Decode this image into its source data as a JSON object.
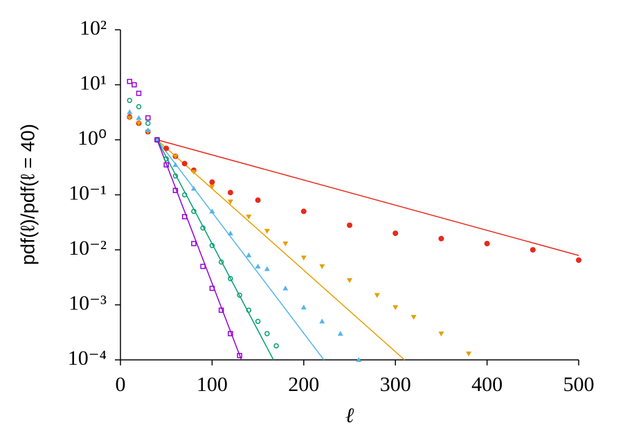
{
  "chart_data": {
    "type": "scatter",
    "xlabel": "ℓ",
    "ylabel": "pdf(ℓ)/pdf(ℓ = 40)",
    "xlim": [
      0,
      500
    ],
    "xticks": [
      0,
      100,
      200,
      300,
      400,
      500
    ],
    "ylim": [
      0.0001,
      100
    ],
    "log_y": true,
    "yticks": [
      {
        "value": 0.0001,
        "label": "10⁻⁴"
      },
      {
        "value": 0.001,
        "label": "10⁻³"
      },
      {
        "value": 0.01,
        "label": "10⁻²"
      },
      {
        "value": 0.1,
        "label": "10⁻¹"
      },
      {
        "value": 1,
        "label": "10⁰"
      },
      {
        "value": 10,
        "label": "10¹"
      },
      {
        "value": 100,
        "label": "10²"
      }
    ],
    "grid": false,
    "series": [
      {
        "color": "#e8291c",
        "marker": "circle",
        "x": [
          10,
          20,
          30,
          40,
          50,
          60,
          70,
          80,
          100,
          120,
          150,
          200,
          250,
          300,
          350,
          400,
          450,
          500
        ],
        "values": [
          2.6,
          2.0,
          1.4,
          1.0,
          0.7,
          0.5,
          0.37,
          0.28,
          0.17,
          0.11,
          0.08,
          0.05,
          0.028,
          0.02,
          0.016,
          0.013,
          0.01,
          0.0065
        ]
      },
      {
        "color": "#e69f00",
        "marker": "triangle-down",
        "x": [
          10,
          20,
          30,
          40,
          60,
          80,
          100,
          120,
          140,
          160,
          180,
          200,
          220,
          250,
          280,
          300,
          320,
          350,
          380
        ],
        "values": [
          2.5,
          2.0,
          1.4,
          1.0,
          0.5,
          0.26,
          0.14,
          0.075,
          0.04,
          0.022,
          0.013,
          0.0072,
          0.005,
          0.0028,
          0.0015,
          0.0009,
          0.0006,
          0.0003,
          0.00013
        ]
      },
      {
        "color": "#56b4e9",
        "marker": "triangle-up",
        "x": [
          10,
          20,
          30,
          40,
          60,
          80,
          100,
          120,
          140,
          150,
          160,
          180,
          200,
          220,
          240,
          260
        ],
        "values": [
          3.2,
          2.5,
          1.5,
          1.0,
          0.35,
          0.13,
          0.05,
          0.02,
          0.008,
          0.005,
          0.0045,
          0.002,
          0.0009,
          0.0005,
          0.0003,
          0.0001
        ]
      },
      {
        "color": "#009e73",
        "marker": "circle-open",
        "x": [
          10,
          20,
          30,
          40,
          50,
          60,
          70,
          80,
          90,
          100,
          110,
          120,
          130,
          140,
          150,
          160,
          170
        ],
        "values": [
          5.2,
          4.0,
          2.0,
          1.0,
          0.45,
          0.22,
          0.1,
          0.05,
          0.025,
          0.012,
          0.006,
          0.003,
          0.0015,
          0.0008,
          0.0005,
          0.0003,
          0.00018
        ]
      },
      {
        "color": "#9400d3",
        "marker": "square",
        "x": [
          10,
          15,
          20,
          30,
          40,
          50,
          60,
          70,
          80,
          90,
          100,
          110,
          120,
          130
        ],
        "values": [
          11.5,
          10,
          7,
          2.5,
          1.0,
          0.35,
          0.12,
          0.04,
          0.013,
          0.005,
          0.002,
          0.0008,
          0.0003,
          0.00012
        ]
      }
    ],
    "fits": [
      {
        "color": "#e8291c",
        "x": [
          40,
          500
        ],
        "values": [
          1,
          0.0079
        ]
      },
      {
        "color": "#e69f00",
        "x": [
          40,
          310
        ],
        "values": [
          1,
          0.0001
        ]
      },
      {
        "color": "#56b4e9",
        "x": [
          40,
          222
        ],
        "values": [
          1,
          0.0001
        ]
      },
      {
        "color": "#009e73",
        "x": [
          40,
          167
        ],
        "values": [
          1,
          0.0001
        ]
      },
      {
        "color": "#9400d3",
        "x": [
          40,
          132
        ],
        "values": [
          1,
          0.0001
        ]
      }
    ]
  }
}
